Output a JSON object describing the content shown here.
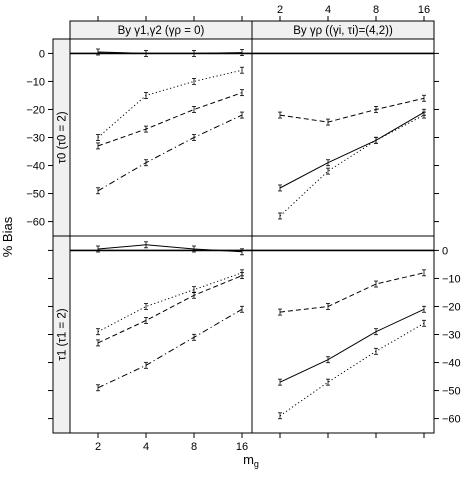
{
  "chart_data": {
    "type": "line",
    "ylabel": "% Bias",
    "xlabel": "m",
    "xlabel_sub": "g",
    "x_ticks": [
      2,
      4,
      8,
      16
    ],
    "x_scale": "log2",
    "ylim": [
      -63,
      3
    ],
    "y_ticks": [
      0,
      -10,
      -20,
      -30,
      -40,
      -50,
      -60
    ],
    "grid": false,
    "column_strips": [
      {
        "label": "By γ1,γ2 (γρ = 0)"
      },
      {
        "label": "By γρ ((γi, τi)=(4,2))"
      }
    ],
    "row_strips": [
      {
        "label": "τ0 (τ0 = 2)"
      },
      {
        "label": "τ1 (τ1 = 2)"
      }
    ],
    "panels": [
      {
        "row": 0,
        "col": 0,
        "series": [
          {
            "style": "solid",
            "x": [
              2,
              4,
              8,
              16
            ],
            "values": [
              0.5,
              0,
              0,
              0.3
            ]
          },
          {
            "style": "dotted",
            "x": [
              2,
              4,
              8,
              16
            ],
            "values": [
              -30,
              -15,
              -10,
              -6
            ]
          },
          {
            "style": "dashed",
            "x": [
              2,
              4,
              8,
              16
            ],
            "values": [
              -33,
              -27,
              -20,
              -14
            ]
          },
          {
            "style": "dashdot",
            "x": [
              2,
              4,
              8,
              16
            ],
            "values": [
              -49,
              -39,
              -30,
              -22
            ]
          }
        ]
      },
      {
        "row": 0,
        "col": 1,
        "series": [
          {
            "style": "solid",
            "x": [
              2,
              4,
              8,
              16
            ],
            "values": [
              -48,
              -39,
              -31,
              -21
            ]
          },
          {
            "style": "dotted",
            "x": [
              2,
              4,
              8,
              16
            ],
            "values": [
              -58,
              -42,
              -31,
              -22
            ]
          },
          {
            "style": "dashed",
            "x": [
              2,
              4,
              8,
              16
            ],
            "values": [
              -22,
              -24.5,
              -20,
              -16
            ]
          }
        ]
      },
      {
        "row": 1,
        "col": 0,
        "series": [
          {
            "style": "solid",
            "x": [
              2,
              4,
              8,
              16
            ],
            "values": [
              0.5,
              2,
              0.5,
              -0.5
            ]
          },
          {
            "style": "dotted",
            "x": [
              2,
              4,
              8,
              16
            ],
            "values": [
              -29,
              -20,
              -14,
              -8
            ]
          },
          {
            "style": "dashed",
            "x": [
              2,
              4,
              8,
              16
            ],
            "values": [
              -33,
              -25,
              -16,
              -9
            ]
          },
          {
            "style": "dashdot",
            "x": [
              2,
              4,
              8,
              16
            ],
            "values": [
              -49,
              -41,
              -31,
              -21
            ]
          }
        ]
      },
      {
        "row": 1,
        "col": 1,
        "series": [
          {
            "style": "solid",
            "x": [
              2,
              4,
              8,
              16
            ],
            "values": [
              -47,
              -39,
              -29,
              -21
            ]
          },
          {
            "style": "dotted",
            "x": [
              2,
              4,
              8,
              16
            ],
            "values": [
              -59,
              -47,
              -36,
              -26
            ]
          },
          {
            "style": "dashed",
            "x": [
              2,
              4,
              8,
              16
            ],
            "values": [
              -22,
              -20,
              -12,
              -8
            ]
          }
        ]
      }
    ]
  }
}
